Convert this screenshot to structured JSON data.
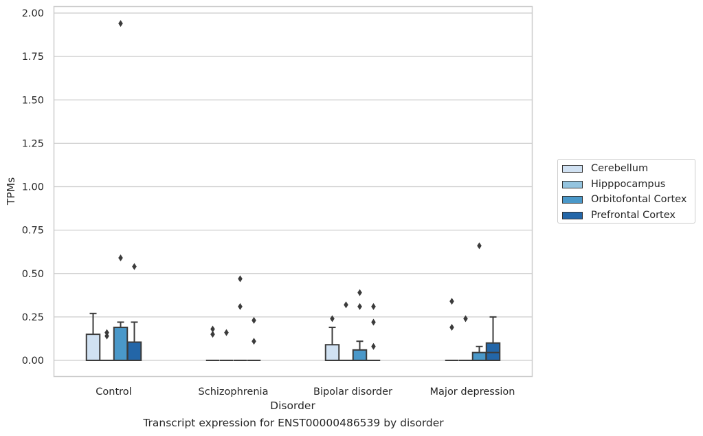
{
  "chart_data": {
    "type": "box",
    "categories": [
      "Control",
      "Schizophrenia",
      "Bipolar disorder",
      "Major depression"
    ],
    "xlabel": "Disorder",
    "ylabel": "TPMs",
    "ylim": [
      -0.095,
      2.04
    ],
    "yticks": [
      "0.00",
      "0.25",
      "0.50",
      "0.75",
      "1.00",
      "1.25",
      "1.50",
      "1.75",
      "2.00"
    ],
    "grid": true,
    "legend_position": "right",
    "caption": "Transcript expression for ENST00000486539 by disorder",
    "series": [
      {
        "name": "Cerebellum",
        "color": "#d0e1f2",
        "boxes": [
          {
            "q1": 0,
            "median": 0,
            "q3": 0.15,
            "whisker_low": 0,
            "whisker_high": 0.27,
            "outliers": []
          },
          {
            "q1": 0,
            "median": 0,
            "q3": 0,
            "whisker_low": 0,
            "whisker_high": 0,
            "outliers": [
              0.15,
              0.18
            ]
          },
          {
            "q1": 0,
            "median": 0,
            "q3": 0.09,
            "whisker_low": 0,
            "whisker_high": 0.19,
            "outliers": [
              0.24
            ]
          },
          {
            "q1": 0,
            "median": 0,
            "q3": 0,
            "whisker_low": 0,
            "whisker_high": 0,
            "outliers": [
              0.19,
              0.34
            ]
          }
        ]
      },
      {
        "name": "Hipppocampus",
        "color": "#94c4df",
        "boxes": [
          {
            "q1": 0,
            "median": 0,
            "q3": 0,
            "whisker_low": 0,
            "whisker_high": 0,
            "outliers": [
              0.14,
              0.16
            ]
          },
          {
            "q1": 0,
            "median": 0,
            "q3": 0,
            "whisker_low": 0,
            "whisker_high": 0,
            "outliers": [
              0.16
            ]
          },
          {
            "q1": 0,
            "median": 0,
            "q3": 0,
            "whisker_low": 0,
            "whisker_high": 0,
            "outliers": [
              0.32
            ]
          },
          {
            "q1": 0,
            "median": 0,
            "q3": 0,
            "whisker_low": 0,
            "whisker_high": 0,
            "outliers": [
              0.24
            ]
          }
        ]
      },
      {
        "name": "Orbitofontal Cortex",
        "color": "#4a98c9",
        "boxes": [
          {
            "q1": 0,
            "median": 0.19,
            "q3": 0.19,
            "whisker_low": 0,
            "whisker_high": 0.22,
            "outliers": [
              0.59,
              1.94
            ]
          },
          {
            "q1": 0,
            "median": 0,
            "q3": 0,
            "whisker_low": 0,
            "whisker_high": 0,
            "outliers": [
              0.31,
              0.47
            ]
          },
          {
            "q1": 0,
            "median": 0,
            "q3": 0.06,
            "whisker_low": 0,
            "whisker_high": 0.11,
            "outliers": [
              0.31,
              0.39
            ]
          },
          {
            "q1": 0,
            "median": 0,
            "q3": 0.045,
            "whisker_low": 0,
            "whisker_high": 0.08,
            "outliers": [
              0.66
            ]
          }
        ]
      },
      {
        "name": "Prefrontal Cortex",
        "color": "#2366a8",
        "boxes": [
          {
            "q1": 0,
            "median": 0.105,
            "q3": 0.105,
            "whisker_low": 0,
            "whisker_high": 0.22,
            "outliers": [
              0.54
            ]
          },
          {
            "q1": 0,
            "median": 0,
            "q3": 0,
            "whisker_low": 0,
            "whisker_high": 0,
            "outliers": [
              0.11,
              0.23
            ]
          },
          {
            "q1": 0,
            "median": 0,
            "q3": 0,
            "whisker_low": 0,
            "whisker_high": 0,
            "outliers": [
              0.08,
              0.22,
              0.31
            ]
          },
          {
            "q1": 0,
            "median": 0.045,
            "q3": 0.1,
            "whisker_low": 0,
            "whisker_high": 0.25,
            "outliers": []
          }
        ]
      }
    ]
  }
}
